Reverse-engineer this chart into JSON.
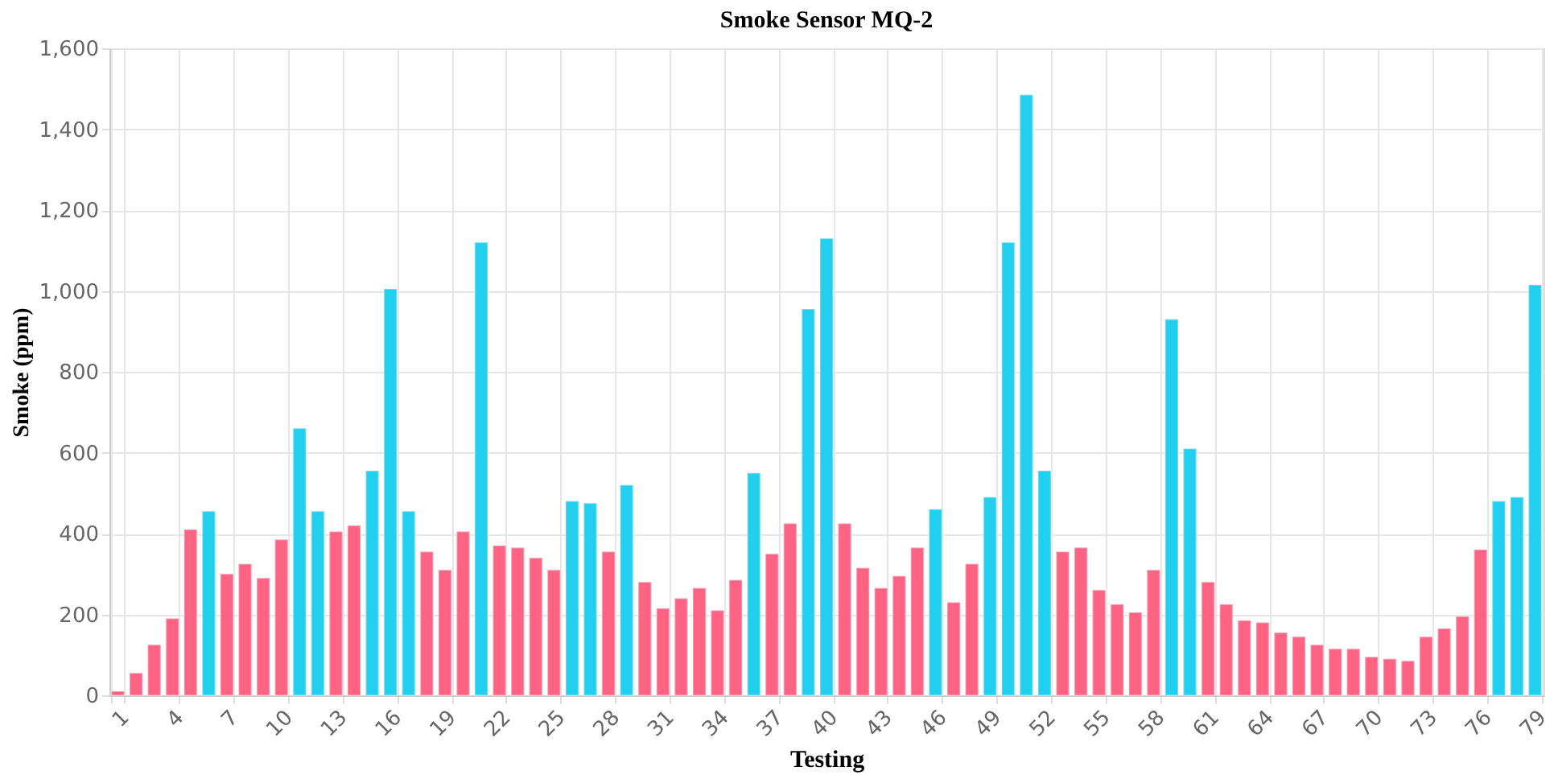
{
  "chart_data": {
    "type": "bar",
    "title": "Smoke Sensor MQ-2",
    "xlabel": "Testing",
    "ylabel": "Smoke (ppm)",
    "categories": [
      "1",
      null,
      null,
      "4",
      null,
      null,
      "7",
      null,
      null,
      "10",
      null,
      null,
      "13",
      null,
      null,
      "16",
      null,
      null,
      "19",
      null,
      null,
      "22",
      null,
      null,
      "25",
      null,
      null,
      "28",
      null,
      null,
      "31",
      null,
      null,
      "34",
      null,
      null,
      "37",
      null,
      null,
      "40",
      null,
      null,
      "43",
      null,
      null,
      "46",
      null,
      null,
      "49",
      null,
      null,
      "52",
      null,
      null,
      "55",
      null,
      null,
      "58",
      null,
      null,
      "61",
      null,
      null,
      "64",
      null,
      null,
      "67",
      null,
      null,
      "70",
      null,
      null,
      "73",
      null,
      null,
      "76",
      null,
      null,
      "79"
    ],
    "values": [
      10,
      55,
      125,
      190,
      410,
      455,
      300,
      325,
      290,
      385,
      660,
      455,
      405,
      420,
      555,
      1005,
      455,
      355,
      310,
      405,
      1120,
      370,
      365,
      340,
      310,
      480,
      475,
      355,
      520,
      280,
      215,
      240,
      265,
      210,
      285,
      550,
      350,
      425,
      955,
      1130,
      425,
      315,
      265,
      295,
      365,
      460,
      230,
      325,
      490,
      1120,
      1485,
      555,
      355,
      365,
      260,
      225,
      205,
      310,
      930,
      610,
      280,
      225,
      185,
      180,
      155,
      145,
      125,
      115,
      115,
      95,
      90,
      85,
      145,
      165,
      195,
      360,
      480,
      490,
      1015
    ],
    "colors": [
      "#ff6384",
      "#ff6384",
      "#ff6384",
      "#ff6384",
      "#ff6384",
      "#22cfee",
      "#ff6384",
      "#ff6384",
      "#ff6384",
      "#ff6384",
      "#22cfee",
      "#22cfee",
      "#ff6384",
      "#ff6384",
      "#22cfee",
      "#22cfee",
      "#22cfee",
      "#ff6384",
      "#ff6384",
      "#ff6384",
      "#22cfee",
      "#ff6384",
      "#ff6384",
      "#ff6384",
      "#ff6384",
      "#22cfee",
      "#22cfee",
      "#ff6384",
      "#22cfee",
      "#ff6384",
      "#ff6384",
      "#ff6384",
      "#ff6384",
      "#ff6384",
      "#ff6384",
      "#22cfee",
      "#ff6384",
      "#ff6384",
      "#22cfee",
      "#22cfee",
      "#ff6384",
      "#ff6384",
      "#ff6384",
      "#ff6384",
      "#ff6384",
      "#22cfee",
      "#ff6384",
      "#ff6384",
      "#22cfee",
      "#22cfee",
      "#22cfee",
      "#22cfee",
      "#ff6384",
      "#ff6384",
      "#ff6384",
      "#ff6384",
      "#ff6384",
      "#ff6384",
      "#22cfee",
      "#22cfee",
      "#ff6384",
      "#ff6384",
      "#ff6384",
      "#ff6384",
      "#ff6384",
      "#ff6384",
      "#ff6384",
      "#ff6384",
      "#ff6384",
      "#ff6384",
      "#ff6384",
      "#ff6384",
      "#ff6384",
      "#ff6384",
      "#ff6384",
      "#ff6384",
      "#22cfee",
      "#22cfee",
      "#22cfee"
    ],
    "ylim": [
      0,
      1600
    ],
    "yticks": [
      0,
      200,
      400,
      600,
      800,
      {
        "value": 1000,
        "label": "1,000"
      },
      {
        "value": 1200,
        "label": "1,200"
      },
      {
        "value": 1400,
        "label": "1,400"
      },
      {
        "value": 1600,
        "label": "1,600"
      }
    ],
    "grid": true,
    "legend": false
  }
}
